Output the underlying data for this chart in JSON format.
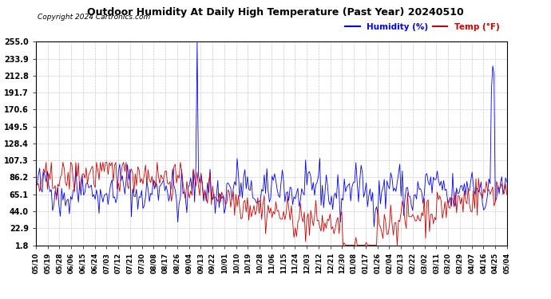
{
  "title": "Outdoor Humidity At Daily High Temperature (Past Year) 20240510",
  "copyright": "Copyright 2024 Cartronics.com",
  "legend_humidity": "Humidity (%)",
  "legend_temp": "Temp (°F)",
  "humidity_color": "#0000ff",
  "temp_color": "#cc0000",
  "background_color": "#ffffff",
  "grid_color": "#bbbbbb",
  "yticks": [
    1.8,
    22.9,
    44.0,
    65.1,
    86.2,
    107.3,
    128.4,
    149.5,
    170.6,
    191.7,
    212.8,
    233.9,
    255.0
  ],
  "ylim": [
    1.8,
    255.0
  ],
  "n_points": 366,
  "x_labels": [
    "05/10",
    "05/19",
    "05/28",
    "06/06",
    "06/15",
    "06/24",
    "07/03",
    "07/12",
    "07/21",
    "07/30",
    "08/08",
    "08/17",
    "08/26",
    "09/04",
    "09/13",
    "09/22",
    "10/01",
    "10/10",
    "10/19",
    "10/28",
    "11/06",
    "11/15",
    "11/24",
    "12/03",
    "12/12",
    "12/21",
    "12/30",
    "01/08",
    "01/17",
    "01/26",
    "02/04",
    "02/13",
    "02/22",
    "03/02",
    "03/11",
    "03/20",
    "03/29",
    "04/07",
    "04/16",
    "04/25",
    "05/04"
  ]
}
